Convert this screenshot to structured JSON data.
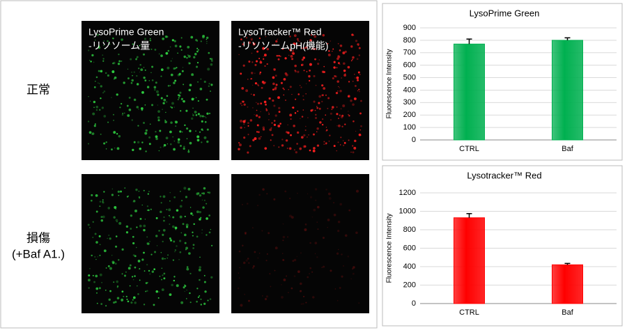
{
  "panel": {
    "rows": [
      "正常",
      [
        "損傷",
        "(+Baf A1.)"
      ]
    ],
    "images": [
      {
        "title": "LysoPrime Green",
        "subtitle": "-リソソーム量"
      },
      {
        "title": "LysoTracker™ Red",
        "subtitle": "-リソソームpH(機能)"
      }
    ]
  },
  "chart_data": [
    {
      "type": "bar",
      "title": "LysoPrime Green",
      "ylabel": "Fluorescence Intensity",
      "categories": [
        "CTRL",
        "Baf"
      ],
      "values": [
        770,
        800
      ],
      "errors": [
        40,
        20
      ],
      "color": "#00b050",
      "ylim": [
        0,
        900
      ],
      "yticks": [
        0,
        100,
        200,
        300,
        400,
        500,
        600,
        700,
        800,
        900
      ],
      "grid": true
    },
    {
      "type": "bar",
      "title": "Lysotracker™ Red",
      "ylabel": "Fluorescence Intensity",
      "categories": [
        "CTRL",
        "Baf"
      ],
      "values": [
        930,
        420
      ],
      "errors": [
        45,
        15
      ],
      "color": "#ff0000",
      "ylim": [
        0,
        1200
      ],
      "yticks": [
        0,
        200,
        400,
        600,
        800,
        1000,
        1200
      ],
      "grid": true
    }
  ]
}
